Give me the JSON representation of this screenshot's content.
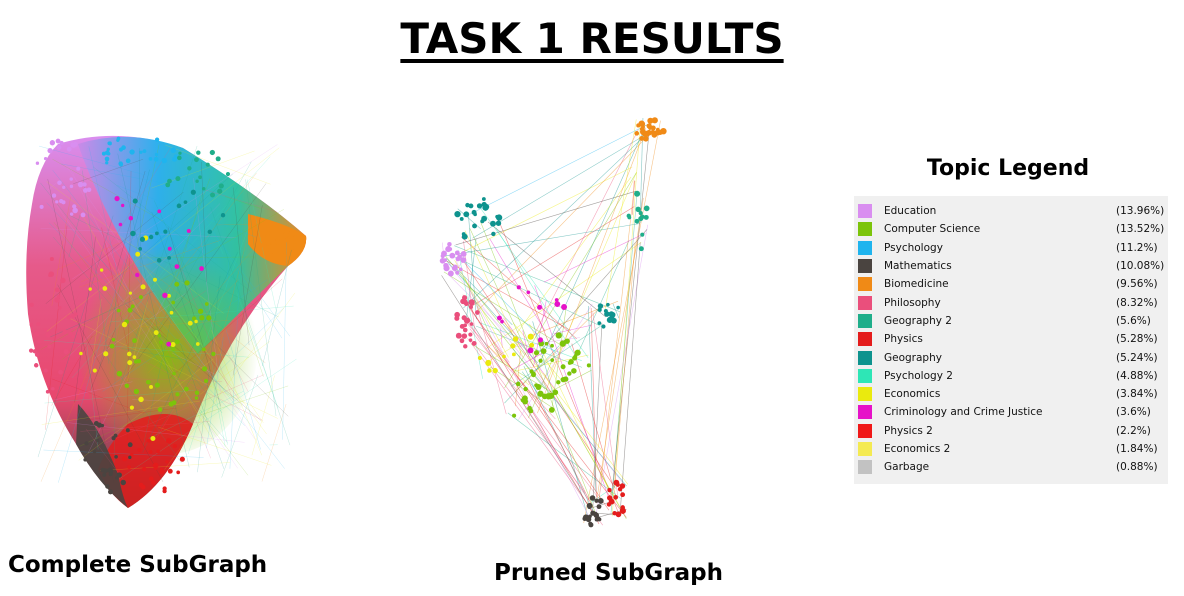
{
  "page": {
    "title": "TASK 1 RESULTS"
  },
  "graphs": {
    "complete": {
      "caption": "Complete SubGraph"
    },
    "pruned": {
      "caption": "Pruned SubGraph"
    }
  },
  "legend": {
    "heading": "Topic Legend",
    "items": [
      {
        "name": "Education",
        "percent": "(13.96%)",
        "color": "#d98ef0"
      },
      {
        "name": "Computer Science",
        "percent": "(13.52%)",
        "color": "#7cc40a"
      },
      {
        "name": "Psychology",
        "percent": "(11.2%)",
        "color": "#1fb4ee"
      },
      {
        "name": "Mathematics",
        "percent": "(10.08%)",
        "color": "#4a4440"
      },
      {
        "name": "Biomedicine",
        "percent": "(9.56%)",
        "color": "#f08a16"
      },
      {
        "name": "Philosophy",
        "percent": "(8.32%)",
        "color": "#ea4f7c"
      },
      {
        "name": "Geography 2",
        "percent": "(5.6%)",
        "color": "#1fae8a"
      },
      {
        "name": "Physics",
        "percent": "(5.28%)",
        "color": "#e41c1c"
      },
      {
        "name": "Geography",
        "percent": "(5.24%)",
        "color": "#0e938e"
      },
      {
        "name": "Psychology 2",
        "percent": "(4.88%)",
        "color": "#2ee6b6"
      },
      {
        "name": "Economics",
        "percent": "(3.84%)",
        "color": "#eaea0e"
      },
      {
        "name": "Criminology and Crime Justice",
        "percent": "(3.6%)",
        "color": "#e612c8"
      },
      {
        "name": "Physics 2",
        "percent": "(2.2%)",
        "color": "#f01818"
      },
      {
        "name": "Economics 2",
        "percent": "(1.84%)",
        "color": "#f4ea52"
      },
      {
        "name": "Garbage",
        "percent": "(0.88%)",
        "color": "#c2c2c2"
      }
    ]
  }
}
